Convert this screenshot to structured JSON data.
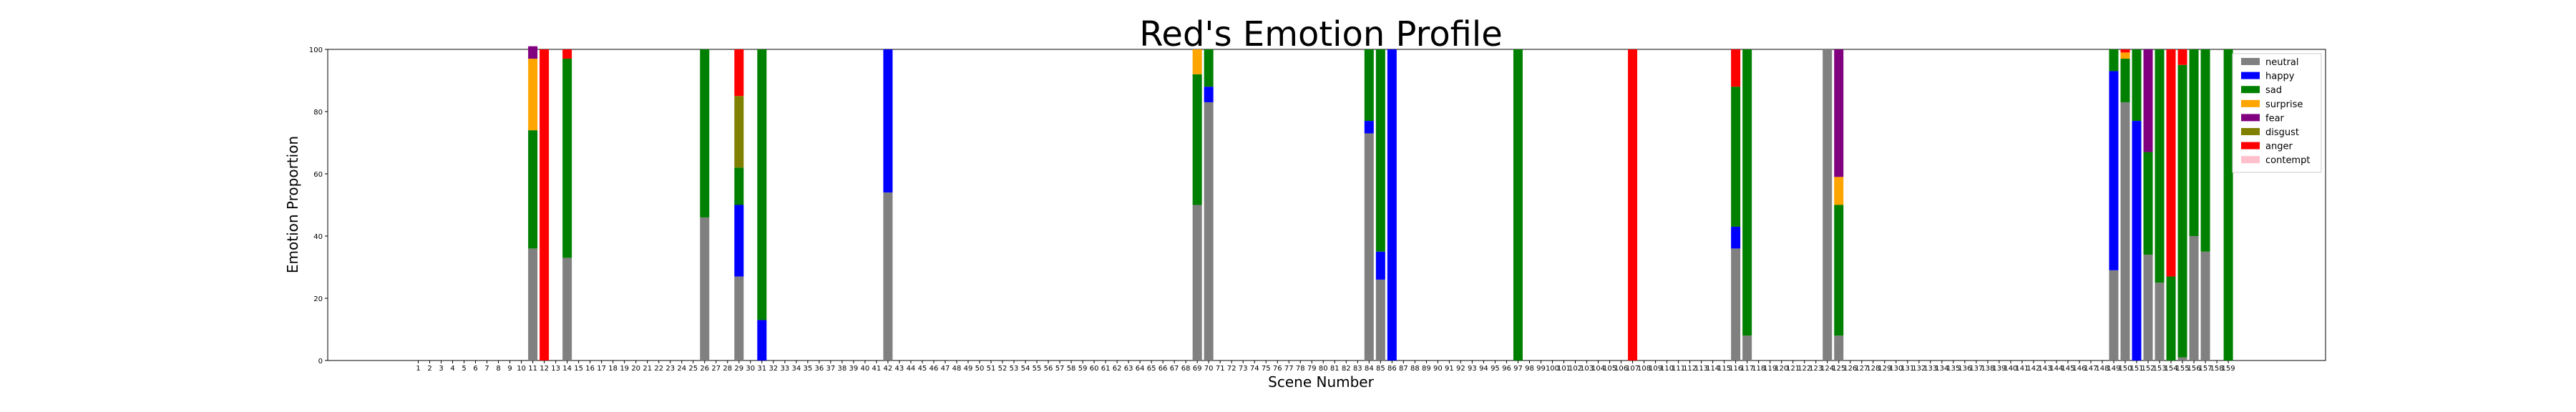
{
  "chart_data": {
    "type": "bar",
    "stacked": true,
    "normalized": true,
    "title": "Red's Emotion Profile",
    "xlabel": "Scene Number",
    "ylabel": "Emotion Proportion",
    "ylim": [
      0,
      100
    ],
    "yticks": [
      0,
      20,
      40,
      60,
      80,
      100
    ],
    "x_range": [
      1,
      159
    ],
    "grid": false,
    "legend_position": "top-right",
    "series": [
      {
        "name": "neutral",
        "color": "#808080"
      },
      {
        "name": "happy",
        "color": "#0000ff"
      },
      {
        "name": "sad",
        "color": "#008000"
      },
      {
        "name": "surprise",
        "color": "#ffa500"
      },
      {
        "name": "fear",
        "color": "#800080"
      },
      {
        "name": "disgust",
        "color": "#808000"
      },
      {
        "name": "anger",
        "color": "#ff0000"
      },
      {
        "name": "contempt",
        "color": "#ffc0cb"
      }
    ],
    "scenes": [
      {
        "x": 11,
        "neutral": 36,
        "happy": 0,
        "sad": 38,
        "surprise": 23,
        "fear": 4,
        "disgust": 0,
        "anger": 0,
        "contempt": 0
      },
      {
        "x": 12,
        "neutral": 0,
        "happy": 0,
        "sad": 0,
        "surprise": 0,
        "fear": 0,
        "disgust": 0,
        "anger": 100,
        "contempt": 0
      },
      {
        "x": 14,
        "neutral": 33,
        "happy": 0,
        "sad": 64,
        "surprise": 0,
        "fear": 0,
        "disgust": 0,
        "anger": 3,
        "contempt": 0
      },
      {
        "x": 26,
        "neutral": 46,
        "happy": 0,
        "sad": 54,
        "surprise": 0,
        "fear": 0,
        "disgust": 0,
        "anger": 0,
        "contempt": 0
      },
      {
        "x": 29,
        "neutral": 27,
        "happy": 23,
        "sad": 12,
        "surprise": 0,
        "fear": 0,
        "disgust": 23,
        "anger": 15,
        "contempt": 0
      },
      {
        "x": 31,
        "neutral": 0,
        "happy": 13,
        "sad": 87,
        "surprise": 0,
        "fear": 0,
        "disgust": 0,
        "anger": 0,
        "contempt": 0
      },
      {
        "x": 42,
        "neutral": 54,
        "happy": 46,
        "sad": 0,
        "surprise": 0,
        "fear": 0,
        "disgust": 0,
        "anger": 0,
        "contempt": 0
      },
      {
        "x": 69,
        "neutral": 50,
        "happy": 0,
        "sad": 42,
        "surprise": 8,
        "fear": 0,
        "disgust": 0,
        "anger": 0,
        "contempt": 0
      },
      {
        "x": 70,
        "neutral": 83,
        "happy": 5,
        "sad": 12,
        "surprise": 0,
        "fear": 0,
        "disgust": 0,
        "anger": 0,
        "contempt": 0
      },
      {
        "x": 84,
        "neutral": 73,
        "happy": 4,
        "sad": 23,
        "surprise": 0,
        "fear": 0,
        "disgust": 0,
        "anger": 0,
        "contempt": 0
      },
      {
        "x": 85,
        "neutral": 26,
        "happy": 9,
        "sad": 65,
        "surprise": 0,
        "fear": 0,
        "disgust": 0,
        "anger": 0,
        "contempt": 0
      },
      {
        "x": 86,
        "neutral": 0,
        "happy": 100,
        "sad": 0,
        "surprise": 0,
        "fear": 0,
        "disgust": 0,
        "anger": 0,
        "contempt": 0
      },
      {
        "x": 97,
        "neutral": 0,
        "happy": 0,
        "sad": 100,
        "surprise": 0,
        "fear": 0,
        "disgust": 0,
        "anger": 0,
        "contempt": 0
      },
      {
        "x": 107,
        "neutral": 0,
        "happy": 0,
        "sad": 0,
        "surprise": 0,
        "fear": 0,
        "disgust": 0,
        "anger": 100,
        "contempt": 0
      },
      {
        "x": 116,
        "neutral": 36,
        "happy": 7,
        "sad": 45,
        "surprise": 0,
        "fear": 0,
        "disgust": 0,
        "anger": 12,
        "contempt": 0
      },
      {
        "x": 117,
        "neutral": 8,
        "happy": 0,
        "sad": 92,
        "surprise": 0,
        "fear": 0,
        "disgust": 0,
        "anger": 0,
        "contempt": 0
      },
      {
        "x": 124,
        "neutral": 100,
        "happy": 0,
        "sad": 0,
        "surprise": 0,
        "fear": 0,
        "disgust": 0,
        "anger": 0,
        "contempt": 0
      },
      {
        "x": 125,
        "neutral": 8,
        "happy": 0,
        "sad": 42,
        "surprise": 9,
        "fear": 41,
        "disgust": 0,
        "anger": 0,
        "contempt": 0
      },
      {
        "x": 149,
        "neutral": 29,
        "happy": 64,
        "sad": 7,
        "surprise": 0,
        "fear": 0,
        "disgust": 0,
        "anger": 0,
        "contempt": 0
      },
      {
        "x": 150,
        "neutral": 83,
        "happy": 0,
        "sad": 14,
        "surprise": 2,
        "fear": 0,
        "disgust": 0,
        "anger": 1,
        "contempt": 0
      },
      {
        "x": 151,
        "neutral": 0,
        "happy": 77,
        "sad": 23,
        "surprise": 0,
        "fear": 0,
        "disgust": 0,
        "anger": 0,
        "contempt": 0
      },
      {
        "x": 152,
        "neutral": 34,
        "happy": 0,
        "sad": 33,
        "surprise": 0,
        "fear": 33,
        "disgust": 0,
        "anger": 0,
        "contempt": 0
      },
      {
        "x": 153,
        "neutral": 25,
        "happy": 0,
        "sad": 75,
        "surprise": 0,
        "fear": 0,
        "disgust": 0,
        "anger": 0,
        "contempt": 0
      },
      {
        "x": 154,
        "neutral": 0,
        "happy": 0,
        "sad": 27,
        "surprise": 0,
        "fear": 0,
        "disgust": 0,
        "anger": 73,
        "contempt": 0
      },
      {
        "x": 155,
        "neutral": 1,
        "happy": 0,
        "sad": 94,
        "surprise": 0,
        "fear": 0,
        "disgust": 0,
        "anger": 5,
        "contempt": 0
      },
      {
        "x": 156,
        "neutral": 40,
        "happy": 0,
        "sad": 60,
        "surprise": 0,
        "fear": 0,
        "disgust": 0,
        "anger": 0,
        "contempt": 0
      },
      {
        "x": 157,
        "neutral": 35,
        "happy": 0,
        "sad": 65,
        "surprise": 0,
        "fear": 0,
        "disgust": 0,
        "anger": 0,
        "contempt": 0
      },
      {
        "x": 159,
        "neutral": 0,
        "happy": 0,
        "sad": 100,
        "surprise": 0,
        "fear": 0,
        "disgust": 0,
        "anger": 0,
        "contempt": 0
      }
    ]
  }
}
